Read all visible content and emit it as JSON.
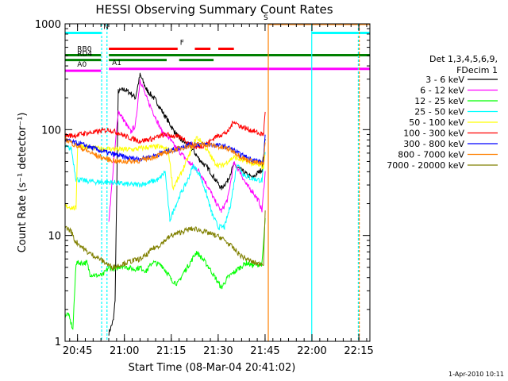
{
  "chart_data": {
    "type": "line",
    "title": "HESSI Observing Summary Count Rates",
    "xlabel": "Start Time (08-Mar-04 20:41:02)",
    "ylabel": "Count Rate (s⁻¹ detector⁻¹)",
    "x_unit": "minutes after 20:41:02",
    "xlim": [
      0,
      97.5
    ],
    "ylim": [
      1,
      1000
    ],
    "y_scale": "log",
    "grid": false,
    "legend_position": "right",
    "x_ticks": [
      {
        "label": "20:45",
        "value": 3.97
      },
      {
        "label": "21:00",
        "value": 18.97
      },
      {
        "label": "21:15",
        "value": 33.97
      },
      {
        "label": "21:30",
        "value": 48.97
      },
      {
        "label": "21:45",
        "value": 63.97
      },
      {
        "label": "22:00",
        "value": 78.97
      },
      {
        "label": "22:15",
        "value": 93.97
      }
    ],
    "y_ticks": [
      {
        "label": "1",
        "value": 1
      },
      {
        "label": "10",
        "value": 10
      },
      {
        "label": "100",
        "value": 100
      },
      {
        "label": "1000",
        "value": 1000
      }
    ],
    "legend": {
      "header": [
        "Det 1,3,4,5,6,9,",
        "FDecim 1"
      ]
    },
    "series": [
      {
        "name": "3 - 6 keV",
        "color": "#000000",
        "points": [
          [
            14,
            1.2
          ],
          [
            15.5,
            1.6
          ],
          [
            16,
            2.5
          ],
          [
            17,
            230
          ],
          [
            19,
            240
          ],
          [
            21,
            220
          ],
          [
            22.5,
            200
          ],
          [
            24,
            330
          ],
          [
            26,
            240
          ],
          [
            29,
            190
          ],
          [
            31,
            150
          ],
          [
            33,
            120
          ],
          [
            35,
            95
          ],
          [
            37,
            80
          ],
          [
            40,
            70
          ],
          [
            43,
            52
          ],
          [
            46,
            42
          ],
          [
            48,
            34
          ],
          [
            50,
            28
          ],
          [
            52,
            33
          ],
          [
            54,
            47
          ],
          [
            56,
            42
          ],
          [
            58,
            38
          ],
          [
            60,
            35
          ],
          [
            62,
            40
          ],
          [
            63,
            42
          ],
          [
            64,
            80
          ]
        ]
      },
      {
        "name": "6 - 12 keV",
        "color": "#ff00ff",
        "points": [
          [
            14,
            14
          ],
          [
            17,
            150
          ],
          [
            19,
            120
          ],
          [
            21,
            95
          ],
          [
            22.5,
            110
          ],
          [
            24,
            300
          ],
          [
            26,
            200
          ],
          [
            29,
            130
          ],
          [
            31,
            95
          ],
          [
            33,
            85
          ],
          [
            35,
            70
          ],
          [
            37,
            60
          ],
          [
            40,
            48
          ],
          [
            43,
            40
          ],
          [
            46,
            28
          ],
          [
            48,
            21
          ],
          [
            50,
            17
          ],
          [
            52,
            22
          ],
          [
            54,
            48
          ],
          [
            56,
            40
          ],
          [
            58,
            30
          ],
          [
            60,
            26
          ],
          [
            62,
            21
          ],
          [
            63,
            17
          ],
          [
            64,
            40
          ]
        ]
      },
      {
        "name": "12 - 25 keV",
        "color": "#00ff00",
        "points": [
          [
            0,
            1.8
          ],
          [
            1,
            1.8
          ],
          [
            2.5,
            1.3
          ],
          [
            3.5,
            5.5
          ],
          [
            5,
            5.5
          ],
          [
            7,
            5.5
          ],
          [
            8,
            4.3
          ],
          [
            10,
            4.2
          ],
          [
            12,
            4.2
          ],
          [
            14,
            5
          ],
          [
            16,
            4.8
          ],
          [
            18,
            5.2
          ],
          [
            20,
            5
          ],
          [
            22,
            4.8
          ],
          [
            24,
            5
          ],
          [
            26,
            4.6
          ],
          [
            28,
            5.6
          ],
          [
            31,
            5.2
          ],
          [
            33,
            4.3
          ],
          [
            34,
            3.8
          ],
          [
            36,
            3.5
          ],
          [
            38,
            4.5
          ],
          [
            40,
            5.5
          ],
          [
            42,
            7
          ],
          [
            44,
            6
          ],
          [
            46,
            5
          ],
          [
            48,
            4
          ],
          [
            50,
            3.2
          ],
          [
            52,
            4
          ],
          [
            54,
            4.5
          ],
          [
            56,
            5
          ],
          [
            58,
            5.5
          ],
          [
            60,
            5.2
          ],
          [
            63,
            5.4
          ],
          [
            64,
            14
          ]
        ]
      },
      {
        "name": "25 - 50 keV",
        "color": "#00ffff",
        "points": [
          [
            0,
            68
          ],
          [
            2,
            66
          ],
          [
            3.5,
            34
          ],
          [
            6,
            33
          ],
          [
            10,
            32
          ],
          [
            14,
            32
          ],
          [
            18,
            31
          ],
          [
            22,
            30
          ],
          [
            26,
            31
          ],
          [
            30,
            34
          ],
          [
            32,
            40
          ],
          [
            33.5,
            14
          ],
          [
            35,
            18
          ],
          [
            37,
            25
          ],
          [
            39,
            32
          ],
          [
            41,
            46
          ],
          [
            43,
            38
          ],
          [
            45,
            26
          ],
          [
            47,
            16
          ],
          [
            49,
            12
          ],
          [
            51,
            12
          ],
          [
            53,
            20
          ],
          [
            55,
            48
          ],
          [
            57,
            38
          ],
          [
            59,
            35
          ],
          [
            61,
            34
          ],
          [
            63,
            33
          ],
          [
            64,
            60
          ]
        ]
      },
      {
        "name": "50 - 100 keV",
        "color": "#ffff00",
        "points": [
          [
            0,
            19
          ],
          [
            3.5,
            18
          ],
          [
            4,
            72
          ],
          [
            7,
            68
          ],
          [
            10,
            66
          ],
          [
            14,
            66
          ],
          [
            18,
            65
          ],
          [
            22,
            65
          ],
          [
            26,
            68
          ],
          [
            30,
            69
          ],
          [
            33,
            65
          ],
          [
            34.5,
            28
          ],
          [
            37,
            38
          ],
          [
            40,
            60
          ],
          [
            42,
            85
          ],
          [
            44,
            75
          ],
          [
            46,
            60
          ],
          [
            48,
            48
          ],
          [
            50,
            45
          ],
          [
            52,
            50
          ],
          [
            54,
            55
          ],
          [
            56,
            52
          ],
          [
            58,
            50
          ],
          [
            60,
            48
          ],
          [
            62,
            46
          ],
          [
            63.5,
            44
          ],
          [
            64,
            60
          ]
        ]
      },
      {
        "name": "100 - 300 keV",
        "color": "#ff0000",
        "points": [
          [
            0,
            88
          ],
          [
            3,
            88
          ],
          [
            6,
            92
          ],
          [
            10,
            95
          ],
          [
            14,
            100
          ],
          [
            17,
            93
          ],
          [
            20,
            85
          ],
          [
            24,
            78
          ],
          [
            28,
            82
          ],
          [
            32,
            90
          ],
          [
            34,
            88
          ],
          [
            36,
            85
          ],
          [
            38,
            82
          ],
          [
            40,
            72
          ],
          [
            42,
            68
          ],
          [
            44,
            70
          ],
          [
            46,
            76
          ],
          [
            48,
            85
          ],
          [
            50,
            90
          ],
          [
            52,
            95
          ],
          [
            54,
            120
          ],
          [
            56,
            108
          ],
          [
            58,
            102
          ],
          [
            60,
            98
          ],
          [
            62,
            92
          ],
          [
            63.5,
            90
          ],
          [
            64,
            150
          ]
        ]
      },
      {
        "name": "300 - 800 keV",
        "color": "#0000ff",
        "points": [
          [
            0,
            80
          ],
          [
            3,
            75
          ],
          [
            6,
            72
          ],
          [
            10,
            65
          ],
          [
            14,
            60
          ],
          [
            17,
            57
          ],
          [
            20,
            54
          ],
          [
            24,
            53
          ],
          [
            28,
            56
          ],
          [
            32,
            62
          ],
          [
            34,
            64
          ],
          [
            36,
            66
          ],
          [
            38,
            70
          ],
          [
            40,
            72
          ],
          [
            42,
            73
          ],
          [
            44,
            73
          ],
          [
            46,
            72
          ],
          [
            48,
            71
          ],
          [
            50,
            70
          ],
          [
            52,
            68
          ],
          [
            54,
            64
          ],
          [
            56,
            58
          ],
          [
            58,
            55
          ],
          [
            60,
            52
          ],
          [
            62,
            50
          ],
          [
            63.5,
            49
          ],
          [
            64,
            90
          ]
        ]
      },
      {
        "name": "800 - 7000 keV",
        "color": "#ff8000",
        "points": [
          [
            0,
            82
          ],
          [
            3,
            72
          ],
          [
            6,
            65
          ],
          [
            10,
            57
          ],
          [
            14,
            52
          ],
          [
            17,
            50
          ],
          [
            20,
            50
          ],
          [
            24,
            51
          ],
          [
            28,
            55
          ],
          [
            32,
            60
          ],
          [
            34,
            63
          ],
          [
            36,
            66
          ],
          [
            38,
            68
          ],
          [
            40,
            70
          ],
          [
            42,
            72
          ],
          [
            44,
            73
          ],
          [
            46,
            72
          ],
          [
            48,
            70
          ],
          [
            50,
            68
          ],
          [
            52,
            66
          ],
          [
            54,
            62
          ],
          [
            56,
            56
          ],
          [
            58,
            52
          ],
          [
            60,
            50
          ],
          [
            62,
            48
          ],
          [
            63.5,
            47
          ],
          [
            64,
            80
          ]
        ]
      },
      {
        "name": "7000 - 20000 keV",
        "color": "#808000",
        "points": [
          [
            0,
            12
          ],
          [
            2,
            11
          ],
          [
            3,
            9
          ],
          [
            5,
            8
          ],
          [
            7,
            7
          ],
          [
            9,
            6.5
          ],
          [
            11,
            6
          ],
          [
            13,
            5.5
          ],
          [
            15,
            5
          ],
          [
            17,
            5.2
          ],
          [
            20,
            5.6
          ],
          [
            22,
            5.8
          ],
          [
            24,
            6
          ],
          [
            26,
            6.5
          ],
          [
            28,
            7.5
          ],
          [
            30,
            8
          ],
          [
            32,
            9
          ],
          [
            34,
            10
          ],
          [
            36,
            10.5
          ],
          [
            38,
            11
          ],
          [
            40,
            11.5
          ],
          [
            42,
            11.5
          ],
          [
            44,
            11
          ],
          [
            46,
            10.5
          ],
          [
            48,
            10
          ],
          [
            50,
            9.5
          ],
          [
            52,
            8.5
          ],
          [
            54,
            7.5
          ],
          [
            56,
            6.5
          ],
          [
            58,
            6
          ],
          [
            60,
            5.6
          ],
          [
            62,
            5.4
          ],
          [
            63.5,
            5.5
          ],
          [
            64,
            18
          ]
        ]
      }
    ],
    "flag_bars": [
      {
        "label": "N",
        "color": "#00ffff",
        "segments": [
          [
            -0.2,
            11.5
          ],
          [
            79,
            97.5
          ]
        ],
        "level": 820
      },
      {
        "label": "F",
        "color": "#ff0000",
        "segments": [
          [
            14,
            36
          ],
          [
            41.5,
            46.5
          ],
          [
            49,
            54
          ]
        ],
        "level": 580
      },
      {
        "label": "S",
        "color": "#ff8000",
        "segments": [
          [
            65,
            97.5
          ]
        ],
        "level": 1000
      },
      {
        "label": "RB0",
        "color": "#008000",
        "segments": [
          [
            -0.2,
            11.5
          ],
          [
            14,
            97.5
          ]
        ],
        "level": 505
      },
      {
        "label": "RD4",
        "color": "#008000",
        "segments": [
          [
            -0.2,
            11.5
          ],
          [
            14,
            32.5
          ],
          [
            36.5,
            47.5
          ]
        ],
        "level": 455
      },
      {
        "label": "A0",
        "color": "#ff00ff",
        "segments": [
          [
            -0.2,
            11.5
          ]
        ],
        "level": 360
      },
      {
        "label": "A1",
        "color": "#ff00ff",
        "segments": [
          [
            14,
            97.5
          ]
        ],
        "level": 375
      }
    ],
    "vertical_markers": [
      {
        "color": "#00ffff",
        "x": 11.7,
        "dashed": true
      },
      {
        "color": "#00ffff",
        "x": 13.4,
        "dashed": true
      },
      {
        "color": "#ff8000",
        "x": 65.0,
        "dashed": false
      },
      {
        "color": "#00ffff",
        "x": 78.9,
        "dashed": false
      },
      {
        "color": "#00ffff",
        "x": 93.8,
        "dashed": true
      },
      {
        "color": "#ff8000",
        "x": 94.1,
        "dashed": true
      }
    ],
    "footer_date": "1-Apr-2010 10:11"
  }
}
